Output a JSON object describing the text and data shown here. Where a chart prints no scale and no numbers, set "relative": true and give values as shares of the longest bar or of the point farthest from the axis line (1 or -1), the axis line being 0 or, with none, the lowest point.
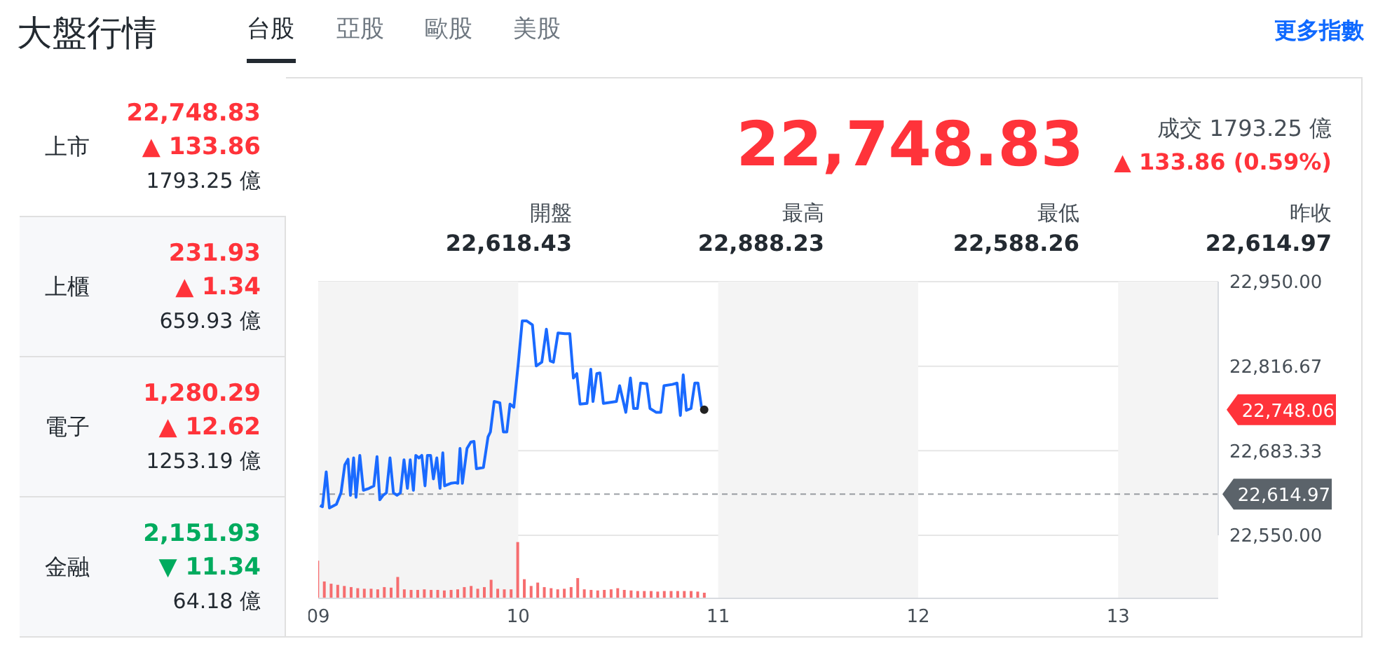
{
  "chart_data": [
    {
      "type": "other",
      "title": "大盤行情",
      "annotations": [
        "台股",
        "亞股",
        "歐股",
        "美股",
        "更多指數",
        "上市",
        "22,748.83",
        "▲ 133.86",
        "1793.25 億",
        "上櫃",
        "231.93",
        "▲ 1.34",
        "659.93 億",
        "電子",
        "1,280.29",
        "▲ 12.62",
        "1253.19 億",
        "金融",
        "2,151.93",
        "▼ 11.34",
        "64.18 億",
        "22,748.83",
        "成交 1793.25 億",
        "▲ 133.86 (0.59%)",
        "開盤",
        "22,618.43",
        "最高",
        "22,888.23",
        "最低",
        "22,588.26",
        "昨收",
        "22,614.97"
      ]
    },
    {
      "type": "line",
      "color": "#1a6aff",
      "tick_labels": "y",
      "grid": "y",
      "xlim": [
        9,
        13.5
      ],
      "ylim": [
        22550,
        22950
      ],
      "yticks": [
        {
          "value": 22550,
          "label": "22,550.00"
        },
        {
          "value": 22683.33,
          "label": "22,683.33"
        },
        {
          "value": 22816.67,
          "label": "22,816.67"
        },
        {
          "value": 22950,
          "label": "22,950.00"
        }
      ],
      "x": [
        9.009,
        9.021,
        9.04,
        9.056,
        9.091,
        9.114,
        9.133,
        9.149,
        9.161,
        9.177,
        9.189,
        9.208,
        9.226,
        9.254,
        9.278,
        9.294,
        9.308,
        9.324,
        9.341,
        9.359,
        9.376,
        9.394,
        9.411,
        9.429,
        9.446,
        9.46,
        9.476,
        9.488,
        9.504,
        9.518,
        9.534,
        9.546,
        9.562,
        9.576,
        9.593,
        9.609,
        9.623,
        9.632,
        9.663,
        9.686,
        9.698,
        9.709,
        9.721,
        9.744,
        9.763,
        9.779,
        9.791,
        9.826,
        9.849,
        9.861,
        9.88,
        9.908,
        9.926,
        9.943,
        9.959,
        9.978,
        10.001,
        10.02,
        10.043,
        10.071,
        10.09,
        10.118,
        10.141,
        10.16,
        10.176,
        10.199,
        10.234,
        10.258,
        10.276,
        10.293,
        10.309,
        10.344,
        10.363,
        10.374,
        10.393,
        10.409,
        10.426,
        10.491,
        10.507,
        10.538,
        10.561,
        10.577,
        10.596,
        10.612,
        10.643,
        10.659,
        10.689,
        10.713,
        10.729,
        10.771,
        10.794,
        10.811,
        10.825,
        10.841,
        10.864,
        10.883,
        10.899,
        10.916,
        10.93
      ],
      "values": [
        22597,
        22595,
        22650,
        22593,
        22599,
        22617,
        22661,
        22670,
        22613,
        22672,
        22610,
        22676,
        22621,
        22624,
        22628,
        22674,
        22606,
        22613,
        22617,
        22672,
        22617,
        22613,
        22617,
        22669,
        22624,
        22669,
        22621,
        22676,
        22672,
        22676,
        22628,
        22676,
        22676,
        22639,
        22672,
        22624,
        22680,
        22628,
        22632,
        22633,
        22632,
        22687,
        22632,
        22687,
        22697,
        22698,
        22655,
        22657,
        22705,
        22713,
        22761,
        22759,
        22713,
        22713,
        22757,
        22752,
        22823,
        22888,
        22888,
        22882,
        22817,
        22823,
        22875,
        22825,
        22823,
        22869,
        22868,
        22868,
        22798,
        22805,
        22757,
        22758,
        22812,
        22761,
        22805,
        22806,
        22758,
        22761,
        22786,
        22744,
        22798,
        22750,
        22750,
        22790,
        22789,
        22750,
        22744,
        22744,
        22786,
        22788,
        22790,
        22739,
        22803,
        22747,
        22750,
        22790,
        22790,
        22753,
        22748
      ],
      "ref_lines": [
        {
          "axis": "y",
          "value": 22614.97,
          "label": "22,614.97",
          "color": "#5b636a",
          "line_style": "dashed"
        }
      ],
      "bands": [
        {
          "axis": "x",
          "from": 9,
          "to": 10,
          "color": "#f4f4f4"
        },
        {
          "axis": "x",
          "from": 11,
          "to": 12,
          "color": "#f4f4f4"
        },
        {
          "axis": "x",
          "from": 13,
          "to": 13.5,
          "color": "#f4f4f4"
        }
      ],
      "annotations": [
        "22,748.06"
      ]
    },
    {
      "type": "bar",
      "relative": true,
      "color": "#f66d6f",
      "tick_labels": "x",
      "xlim": [
        9,
        13.5
      ],
      "xticks": [
        {
          "value": 9,
          "label": "09"
        },
        {
          "value": 10,
          "label": "10"
        },
        {
          "value": 11,
          "label": "11"
        },
        {
          "value": 12,
          "label": "12"
        },
        {
          "value": 13,
          "label": "13"
        }
      ],
      "x": [
        9.0,
        9.033,
        9.067,
        9.1,
        9.133,
        9.167,
        9.2,
        9.233,
        9.267,
        9.3,
        9.333,
        9.367,
        9.4,
        9.433,
        9.467,
        9.5,
        9.533,
        9.567,
        9.6,
        9.633,
        9.667,
        9.7,
        9.733,
        9.767,
        9.8,
        9.833,
        9.867,
        9.9,
        9.933,
        9.967,
        10.0,
        10.033,
        10.067,
        10.1,
        10.133,
        10.167,
        10.2,
        10.233,
        10.267,
        10.3,
        10.333,
        10.367,
        10.4,
        10.433,
        10.467,
        10.5,
        10.533,
        10.567,
        10.6,
        10.633,
        10.667,
        10.7,
        10.733,
        10.767,
        10.8,
        10.833,
        10.867,
        10.9,
        10.933
      ],
      "values": [
        0.67,
        0.3,
        0.26,
        0.24,
        0.22,
        0.2,
        0.18,
        0.17,
        0.17,
        0.16,
        0.2,
        0.19,
        0.38,
        0.16,
        0.15,
        0.15,
        0.16,
        0.15,
        0.15,
        0.14,
        0.15,
        0.16,
        0.2,
        0.22,
        0.17,
        0.2,
        0.33,
        0.17,
        0.16,
        0.16,
        1.0,
        0.34,
        0.22,
        0.28,
        0.2,
        0.18,
        0.16,
        0.17,
        0.2,
        0.36,
        0.16,
        0.15,
        0.14,
        0.15,
        0.16,
        0.18,
        0.15,
        0.14,
        0.13,
        0.13,
        0.13,
        0.12,
        0.13,
        0.13,
        0.13,
        0.13,
        0.13,
        0.12,
        0.1
      ],
      "bands": [
        {
          "axis": "x",
          "from": 9,
          "to": 10,
          "color": "#f4f4f4"
        },
        {
          "axis": "x",
          "from": 11,
          "to": 12,
          "color": "#f4f4f4"
        },
        {
          "axis": "x",
          "from": 13,
          "to": 13.5,
          "color": "#f4f4f4"
        }
      ]
    }
  ]
}
